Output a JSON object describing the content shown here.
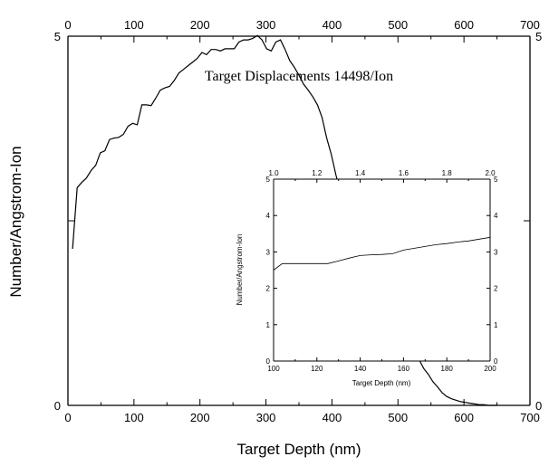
{
  "chart_data": [
    {
      "type": "line",
      "annotation": "Target Displacements 14498/Ion",
      "xlabel": "Target Depth (nm)",
      "ylabel": "Number/Angstrom-Ion",
      "xlim": [
        0,
        700
      ],
      "ylim": [
        0,
        5
      ],
      "x_ticks": [
        "0",
        "100",
        "200",
        "300",
        "400",
        "500",
        "600",
        "700"
      ],
      "x_top_ticks": [
        "0",
        "100",
        "200",
        "300",
        "400",
        "500",
        "600",
        "700"
      ],
      "y_ticks": [
        "0",
        "5"
      ],
      "y_right_ticks": [
        "0",
        "5"
      ],
      "grid": false,
      "series": [
        {
          "x": [
            7,
            14,
            21,
            28,
            35,
            42,
            49,
            56,
            63,
            70,
            77,
            84,
            91,
            98,
            105,
            112,
            119,
            126,
            133,
            140,
            147,
            154,
            161,
            168,
            175,
            182,
            189,
            196,
            203,
            210,
            217,
            224,
            231,
            238,
            245,
            252,
            259,
            266,
            273,
            280,
            287,
            294,
            301,
            308,
            315,
            322,
            329,
            336,
            343,
            350,
            357,
            364,
            371,
            378,
            385,
            392,
            399,
            406,
            413,
            420,
            427,
            434,
            441,
            448,
            455,
            462,
            469,
            476,
            483,
            490,
            497,
            504,
            511,
            518,
            525,
            532,
            539,
            546,
            553,
            560,
            567,
            574,
            581,
            588,
            595,
            602,
            609,
            616,
            623,
            630,
            637,
            644,
            650
          ],
          "y": [
            2.12,
            2.95,
            3.02,
            3.08,
            3.18,
            3.25,
            3.42,
            3.45,
            3.6,
            3.62,
            3.63,
            3.67,
            3.78,
            3.82,
            3.8,
            4.07,
            4.07,
            4.06,
            4.16,
            4.27,
            4.3,
            4.32,
            4.4,
            4.5,
            4.55,
            4.6,
            4.65,
            4.7,
            4.78,
            4.75,
            4.82,
            4.82,
            4.8,
            4.83,
            4.83,
            4.83,
            4.92,
            4.95,
            4.95,
            4.97,
            5.01,
            4.95,
            4.83,
            4.8,
            4.92,
            4.95,
            4.82,
            4.67,
            4.58,
            4.47,
            4.35,
            4.27,
            4.18,
            4.07,
            3.9,
            3.62,
            3.4,
            3.12,
            2.88,
            2.72,
            2.58,
            2.43,
            2.3,
            2.17,
            2.06,
            1.95,
            1.82,
            1.72,
            1.6,
            1.45,
            1.3,
            1.12,
            1.0,
            0.88,
            0.75,
            0.62,
            0.5,
            0.42,
            0.32,
            0.25,
            0.17,
            0.12,
            0.09,
            0.07,
            0.05,
            0.04,
            0.03,
            0.02,
            0.01,
            0.01,
            0.0,
            0.0,
            0.0
          ]
        }
      ]
    },
    {
      "type": "line",
      "xlabel": "Target Depth (nm)",
      "ylabel": "Number/Angstrom-Ion",
      "xlim": [
        100,
        200
      ],
      "ylim": [
        0,
        5
      ],
      "x_ticks": [
        "100",
        "120",
        "140",
        "160",
        "180",
        "200"
      ],
      "x_top_ticks": [
        "1.0",
        "1.2",
        "1.4",
        "1.6",
        "1.8",
        "2.0"
      ],
      "y_ticks": [
        "0",
        "1",
        "2",
        "3",
        "4",
        "5"
      ],
      "y_right_ticks": [
        "0",
        "1",
        "2",
        "3",
        "4",
        "5"
      ],
      "grid": false,
      "series": [
        {
          "x": [
            100,
            104,
            110,
            118,
            125,
            130,
            135,
            140,
            145,
            150,
            155,
            160,
            165,
            170,
            175,
            180,
            185,
            190,
            195,
            200
          ],
          "y": [
            2.5,
            2.68,
            2.68,
            2.68,
            2.68,
            2.75,
            2.83,
            2.9,
            2.92,
            2.93,
            2.95,
            3.05,
            3.1,
            3.15,
            3.2,
            3.23,
            3.27,
            3.3,
            3.35,
            3.4
          ]
        }
      ]
    }
  ]
}
